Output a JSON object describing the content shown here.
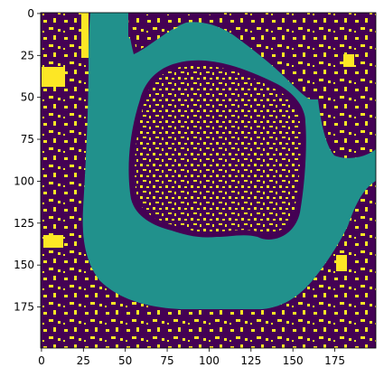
{
  "chart_data": {
    "type": "heatmap",
    "title": "",
    "xlabel": "",
    "ylabel": "",
    "xlim": [
      0,
      199
    ],
    "ylim": [
      199,
      0
    ],
    "image_shape": [
      200,
      200
    ],
    "x_ticks": [
      0,
      25,
      50,
      75,
      100,
      125,
      150,
      175
    ],
    "y_ticks": [
      0,
      25,
      50,
      75,
      100,
      125,
      150,
      175
    ],
    "x_tick_labels": [
      "0",
      "25",
      "50",
      "75",
      "100",
      "125",
      "150",
      "175"
    ],
    "y_tick_labels": [
      "0",
      "25",
      "50",
      "75",
      "100",
      "125",
      "150",
      "175"
    ],
    "colormap": "viridis",
    "classes": [
      {
        "value": 0,
        "color": "#440154"
      },
      {
        "value": 1,
        "color": "#21918c"
      },
      {
        "value": 2,
        "color": "#fde725"
      }
    ],
    "grid": false,
    "legend": "none"
  }
}
